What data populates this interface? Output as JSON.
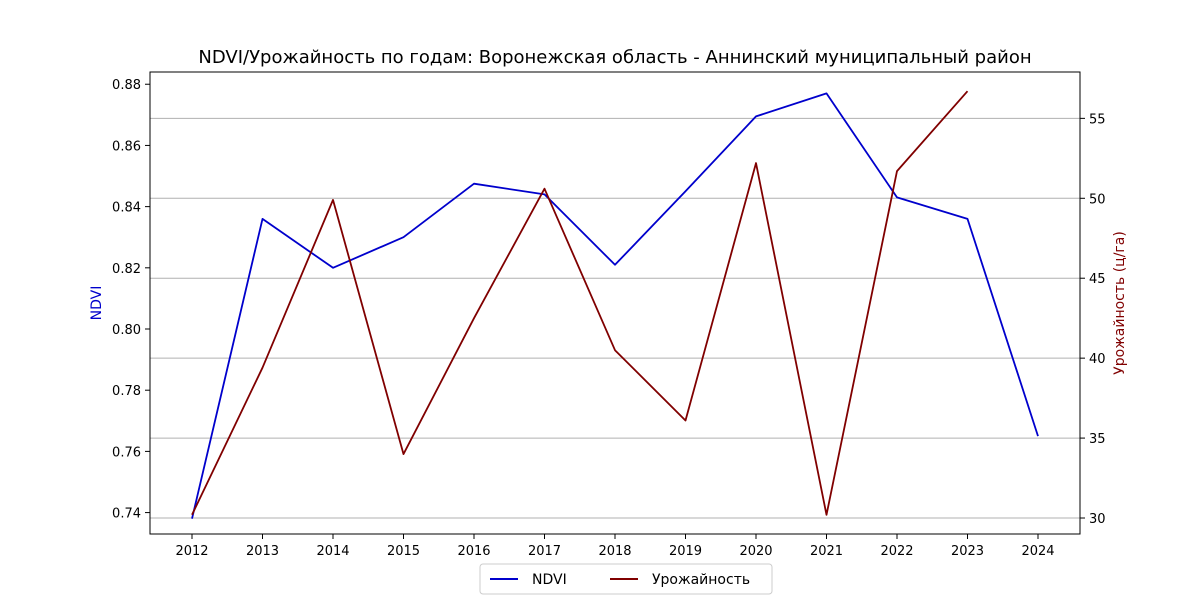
{
  "chart_data": {
    "type": "line",
    "title": "NDVI/Урожайность по годам: Воронежская область - Аннинский муниципальный район",
    "xlabel": "",
    "x": [
      "2012",
      "2013",
      "2014",
      "2015",
      "2016",
      "2017",
      "2018",
      "2019",
      "2020",
      "2021",
      "2022",
      "2023",
      "2024"
    ],
    "y_left": {
      "label": "NDVI",
      "lim": [
        0.733,
        0.884
      ],
      "ticks": [
        0.74,
        0.76,
        0.78,
        0.8,
        0.82,
        0.84,
        0.86,
        0.88
      ],
      "tick_labels": [
        "0.74",
        "0.76",
        "0.78",
        "0.80",
        "0.82",
        "0.84",
        "0.86",
        "0.88"
      ]
    },
    "y_right": {
      "label": "Урожайность (ц/га)",
      "lim": [
        29.0,
        57.9
      ],
      "ticks": [
        30,
        35,
        40,
        45,
        50,
        55
      ],
      "tick_labels": [
        "30",
        "35",
        "40",
        "45",
        "50",
        "55"
      ]
    },
    "grid": "horizontal-right-axis",
    "legend_placement": "bottom-center",
    "series": [
      {
        "name": "NDVI",
        "axis": "left",
        "color": "#0000cc",
        "values": [
          0.738,
          0.836,
          0.82,
          0.83,
          0.8475,
          0.844,
          0.821,
          0.845,
          0.8695,
          0.877,
          0.843,
          0.836,
          0.765
        ]
      },
      {
        "name": "Урожайность",
        "axis": "right",
        "color": "#800000",
        "values": [
          30.2,
          39.4,
          49.9,
          34.0,
          42.5,
          50.6,
          40.5,
          36.1,
          52.2,
          30.2,
          51.7,
          56.7,
          null
        ]
      }
    ]
  }
}
